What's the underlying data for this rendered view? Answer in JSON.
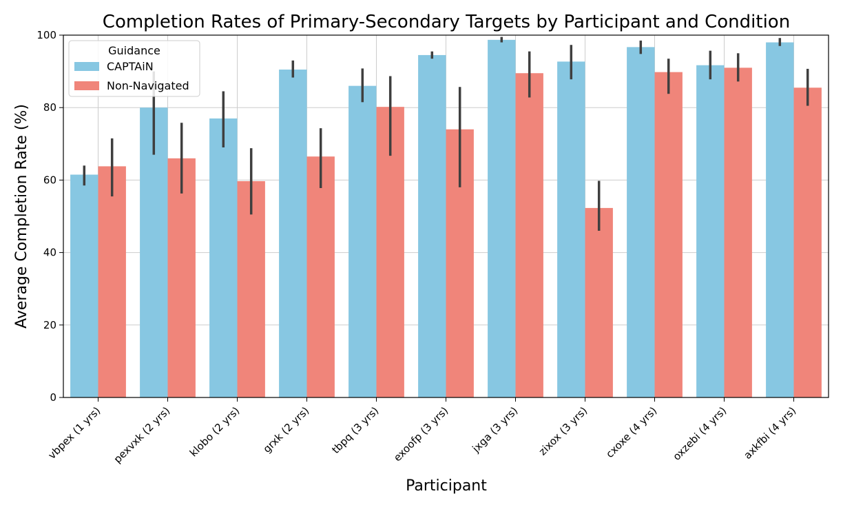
{
  "chart_data": {
    "type": "bar",
    "title": "Completion Rates of Primary-Secondary Targets by Participant and Condition",
    "xlabel": "Participant",
    "ylabel": "Average Completion Rate (%)",
    "ylim": [
      0,
      100
    ],
    "yticks": [
      0,
      20,
      40,
      60,
      80,
      100
    ],
    "grid": true,
    "legend": {
      "title": "Guidance",
      "position": "top-left"
    },
    "categories": [
      "vbpex (1 yrs)",
      "pexvxk (2 yrs)",
      "klobo (2 yrs)",
      "grxk (2 yrs)",
      "tbpq (3 yrs)",
      "exoofp (3 yrs)",
      "jxga (3 yrs)",
      "zixox (3 yrs)",
      "cxoxe (4 yrs)",
      "oxzebi (4 yrs)",
      "axkfbi (4 yrs)"
    ],
    "series": [
      {
        "name": "CAPTAiN",
        "color": "#87c7e2",
        "values": [
          61.5,
          80.0,
          77.0,
          90.5,
          86.0,
          94.5,
          98.7,
          92.7,
          96.7,
          91.7,
          98.0
        ],
        "error_low": [
          58.5,
          67.0,
          69.0,
          88.3,
          81.5,
          93.5,
          98.0,
          87.8,
          94.8,
          87.8,
          97.0
        ],
        "error_high": [
          64.0,
          90.0,
          84.5,
          93.0,
          90.8,
          95.5,
          99.5,
          97.3,
          98.5,
          95.7,
          99.2
        ]
      },
      {
        "name": "Non-Navigated",
        "color": "#f0857a",
        "values": [
          63.8,
          66.0,
          59.7,
          66.5,
          80.2,
          74.0,
          89.5,
          52.3,
          89.8,
          91.0,
          85.5
        ],
        "error_low": [
          55.5,
          56.3,
          50.5,
          57.8,
          66.7,
          58.0,
          82.8,
          46.0,
          83.8,
          87.2,
          80.5
        ],
        "error_high": [
          71.5,
          75.8,
          68.8,
          74.3,
          88.7,
          85.7,
          95.5,
          59.8,
          93.5,
          95.0,
          90.7
        ]
      }
    ]
  }
}
